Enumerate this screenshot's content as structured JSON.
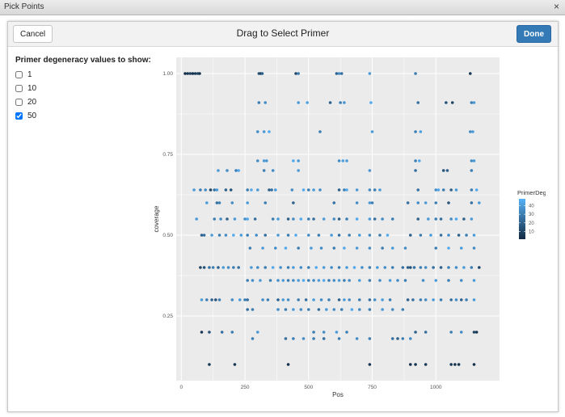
{
  "window": {
    "title": "Pick Points",
    "close_label": "×"
  },
  "toolbar": {
    "cancel_label": "Cancel",
    "title": "Drag to Select Primer",
    "done_label": "Done"
  },
  "filter": {
    "label": "Primer degeneracy values to show:",
    "options": [
      {
        "label": "1",
        "checked": false
      },
      {
        "label": "10",
        "checked": false
      },
      {
        "label": "20",
        "checked": false
      },
      {
        "label": "50",
        "checked": true
      }
    ]
  },
  "chart_data": {
    "type": "scatter",
    "xlabel": "Pos",
    "ylabel": "coverage",
    "x_ticks": [
      "0",
      "250",
      "500",
      "750",
      "1000"
    ],
    "y_ticks": [
      "0.25",
      "0.50",
      "0.75",
      "1.00"
    ],
    "xlim": [
      -20,
      1250
    ],
    "ylim": [
      0.05,
      1.05
    ],
    "grid": true,
    "legend": {
      "title": "PrimerDeg",
      "position": "right",
      "ticks": [
        "40",
        "30",
        "20",
        "10"
      ],
      "range": [
        1,
        48
      ]
    },
    "colors": {
      "low": "#132b43",
      "high": "#56b1f7",
      "panel": "#ebebeb",
      "grid": "#ffffff"
    },
    "series": [
      {
        "y": 1.0,
        "x": [
          15,
          25,
          35,
          45,
          55,
          65,
          72,
          305,
          312,
          318,
          450,
          460,
          610,
          620,
          630,
          740,
          920,
          1135
        ],
        "deg": [
          2,
          5,
          8,
          3,
          6,
          10,
          4,
          15,
          8,
          20,
          10,
          30,
          20,
          35,
          25,
          40,
          30,
          5
        ]
      },
      {
        "y": 0.91,
        "x": [
          305,
          330,
          460,
          495,
          585,
          625,
          640,
          745,
          930,
          1040,
          1065,
          1140,
          1150
        ],
        "deg": [
          30,
          35,
          40,
          42,
          20,
          30,
          38,
          45,
          25,
          15,
          10,
          30,
          40
        ]
      },
      {
        "y": 0.82,
        "x": [
          300,
          325,
          345,
          545,
          750,
          920,
          940,
          1135,
          1145
        ],
        "deg": [
          35,
          40,
          45,
          30,
          40,
          30,
          42,
          35,
          40
        ]
      },
      {
        "y": 0.73,
        "x": [
          300,
          325,
          335,
          440,
          460,
          620,
          635,
          650,
          920,
          935,
          1140,
          1150
        ],
        "deg": [
          35,
          40,
          38,
          45,
          40,
          35,
          42,
          40,
          30,
          45,
          35,
          40
        ]
      },
      {
        "y": 0.7,
        "x": [
          145,
          180,
          215,
          225,
          325,
          360,
          460,
          740,
          920,
          1030,
          1045,
          1140
        ],
        "deg": [
          40,
          35,
          30,
          45,
          30,
          35,
          40,
          38,
          25,
          15,
          20,
          30
        ]
      },
      {
        "y": 0.64,
        "x": [
          50,
          75,
          95,
          115,
          130,
          140,
          175,
          195,
          260,
          275,
          300,
          345,
          355,
          370,
          435,
          480,
          500,
          520,
          545,
          620,
          640,
          650,
          690,
          740,
          760,
          780,
          930,
          1000,
          1010,
          1030,
          1060,
          1080,
          1140,
          1160
        ],
        "deg": [
          40,
          30,
          35,
          10,
          25,
          40,
          20,
          15,
          30,
          45,
          40,
          20,
          25,
          40,
          35,
          45,
          30,
          40,
          35,
          20,
          30,
          45,
          40,
          35,
          30,
          40,
          25,
          35,
          45,
          30,
          20,
          40,
          30,
          45
        ]
      },
      {
        "y": 0.6,
        "x": [
          100,
          140,
          150,
          200,
          260,
          330,
          440,
          600,
          690,
          740,
          750,
          890,
          930,
          960,
          1000,
          1050,
          1140,
          1170
        ],
        "deg": [
          40,
          25,
          30,
          35,
          40,
          30,
          20,
          25,
          35,
          40,
          30,
          25,
          35,
          40,
          30,
          15,
          25,
          40
        ]
      },
      {
        "y": 0.55,
        "x": [
          60,
          130,
          155,
          180,
          210,
          250,
          260,
          290,
          360,
          380,
          420,
          440,
          470,
          500,
          520,
          560,
          600,
          620,
          650,
          690,
          740,
          760,
          790,
          830,
          930,
          970,
          1000,
          1020,
          1060,
          1080,
          1110,
          1140
        ],
        "deg": [
          40,
          30,
          35,
          20,
          40,
          35,
          45,
          25,
          30,
          40,
          20,
          35,
          45,
          30,
          25,
          40,
          35,
          20,
          30,
          45,
          40,
          25,
          35,
          30,
          20,
          40,
          30,
          25,
          35,
          45,
          20,
          40
        ]
      },
      {
        "y": 0.5,
        "x": [
          80,
          90,
          120,
          150,
          175,
          205,
          235,
          260,
          295,
          330,
          380,
          420,
          450,
          500,
          540,
          590,
          620,
          660,
          700,
          740,
          780,
          810,
          900,
          940,
          980,
          1020,
          1050,
          1090,
          1120,
          1150
        ],
        "deg": [
          20,
          25,
          40,
          30,
          35,
          45,
          40,
          30,
          35,
          25,
          40,
          30,
          45,
          35,
          30,
          40,
          25,
          30,
          40,
          35,
          30,
          45,
          20,
          30,
          40,
          25,
          35,
          20,
          30,
          40
        ]
      },
      {
        "y": 0.46,
        "x": [
          270,
          320,
          370,
          410,
          460,
          510,
          550,
          600,
          640,
          690,
          740,
          790,
          830,
          880,
          1000,
          1050,
          1100,
          1150
        ],
        "deg": [
          30,
          40,
          35,
          45,
          30,
          40,
          35,
          30,
          45,
          40,
          35,
          30,
          40,
          35,
          30,
          45,
          40,
          35
        ]
      },
      {
        "y": 0.4,
        "x": [
          75,
          90,
          110,
          125,
          145,
          165,
          185,
          205,
          225,
          275,
          300,
          330,
          360,
          390,
          420,
          440,
          470,
          500,
          530,
          560,
          590,
          620,
          650,
          680,
          710,
          740,
          770,
          800,
          830,
          870,
          890,
          900,
          915,
          940,
          960,
          990,
          1020,
          1050,
          1080,
          1110,
          1140,
          1170
        ],
        "deg": [
          10,
          15,
          25,
          30,
          20,
          40,
          35,
          30,
          25,
          40,
          35,
          30,
          45,
          35,
          30,
          40,
          35,
          30,
          45,
          40,
          35,
          30,
          40,
          45,
          35,
          30,
          40,
          35,
          30,
          25,
          20,
          15,
          25,
          30,
          35,
          25,
          20,
          30,
          35,
          40,
          30,
          10
        ]
      },
      {
        "y": 0.36,
        "x": [
          260,
          280,
          310,
          350,
          380,
          400,
          420,
          440,
          460,
          480,
          500,
          520,
          540,
          560,
          580,
          600,
          620,
          640,
          660,
          700,
          740,
          780,
          820,
          850,
          880,
          950,
          1000,
          1050,
          1100,
          1150
        ],
        "deg": [
          30,
          35,
          40,
          30,
          35,
          40,
          30,
          35,
          40,
          45,
          30,
          35,
          40,
          45,
          30,
          35,
          40,
          30,
          35,
          40,
          30,
          35,
          40,
          35,
          30,
          35,
          40,
          30,
          35,
          40
        ]
      },
      {
        "y": 0.3,
        "x": [
          80,
          100,
          120,
          135,
          150,
          200,
          230,
          250,
          260,
          320,
          340,
          380,
          400,
          420,
          460,
          490,
          520,
          550,
          580,
          620,
          640,
          660,
          700,
          740,
          760,
          790,
          820,
          890,
          910,
          940,
          960,
          990,
          1020,
          1060,
          1080,
          1100,
          1120,
          1150
        ],
        "deg": [
          40,
          30,
          20,
          15,
          30,
          35,
          40,
          30,
          25,
          35,
          30,
          20,
          40,
          35,
          30,
          25,
          40,
          35,
          30,
          20,
          40,
          35,
          30,
          25,
          35,
          40,
          30,
          20,
          25,
          30,
          35,
          40,
          30,
          25,
          35,
          20,
          30,
          40
        ]
      },
      {
        "y": 0.27,
        "x": [
          260,
          280,
          380,
          410,
          440,
          470,
          500,
          540,
          570,
          600,
          630,
          670,
          700,
          740,
          790,
          830,
          870
        ],
        "deg": [
          25,
          30,
          35,
          30,
          40,
          35,
          30,
          25,
          40,
          35,
          30,
          45,
          35,
          30,
          40,
          35,
          30
        ]
      },
      {
        "y": 0.2,
        "x": [
          80,
          110,
          160,
          200,
          300,
          520,
          560,
          610,
          650,
          920,
          960,
          1060,
          1100,
          1150,
          1160
        ],
        "deg": [
          5,
          15,
          25,
          30,
          40,
          30,
          35,
          40,
          30,
          20,
          25,
          30,
          35,
          10,
          5
        ]
      },
      {
        "y": 0.18,
        "x": [
          280,
          410,
          440,
          480,
          520,
          560,
          620,
          690,
          740,
          830,
          850,
          870,
          900
        ],
        "deg": [
          30,
          25,
          30,
          35,
          30,
          25,
          30,
          35,
          30,
          25,
          20,
          30,
          35
        ]
      },
      {
        "y": 0.1,
        "x": [
          110,
          210,
          420,
          740,
          900,
          920,
          960,
          1060,
          1075,
          1090,
          1150
        ],
        "deg": [
          5,
          5,
          3,
          5,
          3,
          4,
          6,
          5,
          3,
          4,
          2
        ]
      }
    ]
  }
}
